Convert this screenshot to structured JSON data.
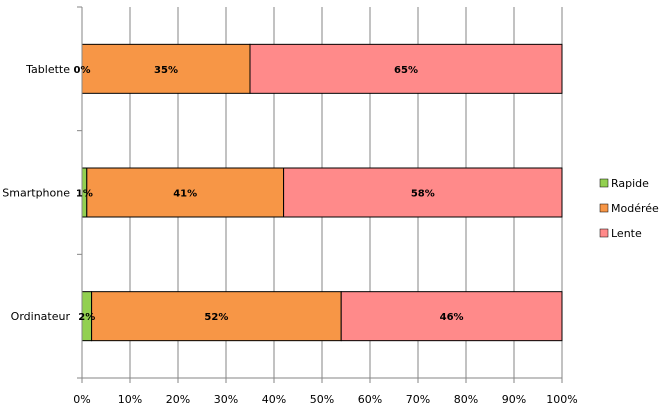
{
  "chart_data": {
    "type": "bar",
    "orientation": "horizontal",
    "stacked": "percent",
    "categories": [
      "Tablette",
      "Smartphone",
      "Ordinateur"
    ],
    "series": [
      {
        "name": "Rapide",
        "values": [
          0,
          1,
          2
        ],
        "labels": [
          "0%",
          "1%",
          "2%"
        ]
      },
      {
        "name": "Modérée",
        "values": [
          35,
          41,
          52
        ],
        "labels": [
          "35%",
          "41%",
          "52%"
        ]
      },
      {
        "name": "Lente",
        "values": [
          65,
          58,
          46
        ],
        "labels": [
          "65%",
          "58%",
          "46%"
        ]
      }
    ],
    "xlim": [
      0,
      100
    ],
    "x_ticks": [
      "0%",
      "10%",
      "20%",
      "30%",
      "40%",
      "50%",
      "60%",
      "70%",
      "80%",
      "90%",
      "100%"
    ],
    "grid": "vertical",
    "legend": "right",
    "colors": {
      "Rapide": "#92d050",
      "Modérée": "#f79646",
      "Lente": "#ff8a8a"
    }
  }
}
